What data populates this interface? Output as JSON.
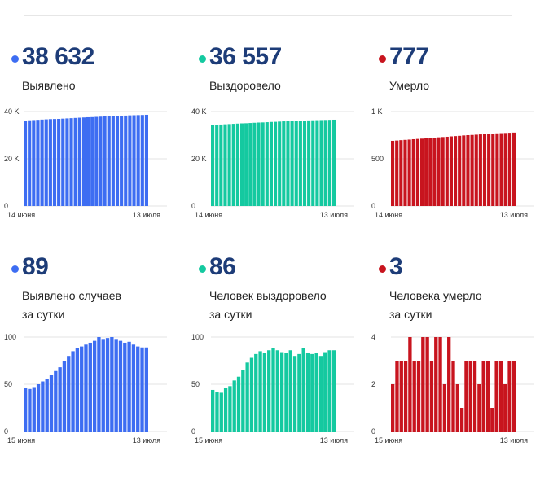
{
  "panels": [
    {
      "value": "38 632",
      "label": [
        "Выявлено"
      ],
      "color": "#3d6df2",
      "dot": "#3d6df2"
    },
    {
      "value": "36 557",
      "label": [
        "Выздоровело"
      ],
      "color": "#14c9a0",
      "dot": "#14c9a0"
    },
    {
      "value": "777",
      "label": [
        "Умерло"
      ],
      "color": "#c8141e",
      "dot": "#c8141e"
    },
    {
      "value": "89",
      "label": [
        "Выявлено случаев",
        "за сутки"
      ],
      "color": "#3d6df2",
      "dot": "#3d6df2"
    },
    {
      "value": "86",
      "label": [
        "Человек выздоровело",
        "за сутки"
      ],
      "color": "#14c9a0",
      "dot": "#14c9a0"
    },
    {
      "value": "3",
      "label": [
        "Человека умерло",
        "за сутки"
      ],
      "color": "#c8141e",
      "dot": "#c8141e"
    }
  ],
  "chart_data": [
    {
      "type": "bar",
      "color": "#3d6df2",
      "yticks": [
        "0",
        "20 K",
        "40 K"
      ],
      "ytick_values": [
        0,
        20000,
        40000
      ],
      "ylim": [
        0,
        40000
      ],
      "x_start": "14 июня",
      "x_end": "13 июля",
      "values": [
        36200,
        36300,
        36400,
        36500,
        36600,
        36700,
        36800,
        36850,
        36900,
        37000,
        37100,
        37200,
        37300,
        37400,
        37500,
        37600,
        37650,
        37750,
        37850,
        37950,
        38050,
        38100,
        38200,
        38250,
        38300,
        38400,
        38450,
        38500,
        38550,
        38632
      ]
    },
    {
      "type": "bar",
      "color": "#14c9a0",
      "yticks": [
        "0",
        "20 K",
        "40 K"
      ],
      "ytick_values": [
        0,
        20000,
        40000
      ],
      "ylim": [
        0,
        40000
      ],
      "x_start": "14 июня",
      "x_end": "13 июля",
      "values": [
        34300,
        34400,
        34500,
        34600,
        34700,
        34800,
        34900,
        35000,
        35050,
        35150,
        35250,
        35350,
        35400,
        35500,
        35600,
        35650,
        35750,
        35850,
        35900,
        36000,
        36050,
        36100,
        36200,
        36250,
        36300,
        36350,
        36400,
        36450,
        36500,
        36557
      ]
    },
    {
      "type": "bar",
      "color": "#c8141e",
      "yticks": [
        "0",
        "500",
        "1 K"
      ],
      "ytick_values": [
        0,
        500,
        1000
      ],
      "ylim": [
        0,
        1000
      ],
      "x_start": "14 июня",
      "x_end": "13 июля",
      "values": [
        690,
        693,
        697,
        700,
        703,
        707,
        710,
        713,
        716,
        720,
        723,
        727,
        730,
        733,
        737,
        740,
        743,
        747,
        750,
        752,
        755,
        758,
        761,
        764,
        767,
        769,
        771,
        773,
        775,
        777
      ]
    },
    {
      "type": "bar",
      "color": "#3d6df2",
      "yticks": [
        "0",
        "50",
        "100"
      ],
      "ytick_values": [
        0,
        50,
        100
      ],
      "ylim": [
        0,
        100
      ],
      "x_start": "15 июня",
      "x_end": "13 июля",
      "values": [
        46,
        45,
        47,
        50,
        53,
        56,
        60,
        64,
        68,
        75,
        80,
        85,
        88,
        90,
        92,
        94,
        96,
        100,
        98,
        99,
        100,
        98,
        96,
        94,
        95,
        92,
        90,
        89,
        89
      ]
    },
    {
      "type": "bar",
      "color": "#14c9a0",
      "yticks": [
        "0",
        "50",
        "100"
      ],
      "ytick_values": [
        0,
        50,
        100
      ],
      "ylim": [
        0,
        100
      ],
      "x_start": "15 июня",
      "x_end": "13 июля",
      "values": [
        44,
        42,
        41,
        46,
        48,
        54,
        58,
        65,
        73,
        78,
        82,
        85,
        83,
        86,
        88,
        86,
        84,
        83,
        86,
        80,
        82,
        88,
        83,
        82,
        83,
        80,
        84,
        86,
        86
      ]
    },
    {
      "type": "bar",
      "color": "#c8141e",
      "yticks": [
        "0",
        "2",
        "4"
      ],
      "ytick_values": [
        0,
        2,
        4
      ],
      "ylim": [
        0,
        4
      ],
      "x_start": "15 июня",
      "x_end": "13 июля",
      "values": [
        2,
        3,
        3,
        3,
        4,
        3,
        3,
        4,
        4,
        3,
        4,
        4,
        2,
        4,
        3,
        2,
        1,
        3,
        3,
        3,
        2,
        3,
        3,
        1,
        3,
        3,
        2,
        3,
        3
      ]
    }
  ]
}
